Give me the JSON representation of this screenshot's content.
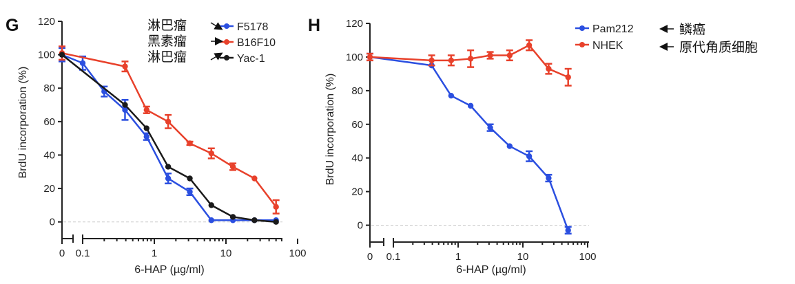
{
  "chart_data": [
    {
      "panel": "G",
      "type": "line",
      "xlabel": "6-HAP (µg/ml)",
      "ylabel": "BrdU incorporation (%)",
      "xscale": "log (broken axis with 0)",
      "ylim": [
        -10,
        120
      ],
      "yticks": [
        "0",
        "20",
        "40",
        "60",
        "80",
        "100",
        "120"
      ],
      "xticks": [
        "0",
        "0.1",
        "1",
        "10",
        "100"
      ],
      "legend_position": "top-right",
      "series": [
        {
          "name": "F5178",
          "color": "#2b4fe0",
          "annotation": "淋巴瘤",
          "x": [
            0,
            0.1,
            0.2,
            0.39,
            0.78,
            1.56,
            3.13,
            6.25,
            12.5,
            25,
            50
          ],
          "y": [
            100,
            95,
            78,
            67,
            51,
            26,
            18,
            1,
            1,
            1,
            1
          ],
          "err": [
            4,
            4,
            3,
            6,
            2,
            3,
            2,
            0,
            0,
            0,
            0
          ]
        },
        {
          "name": "B16F10",
          "color": "#e8412b",
          "annotation": "黑素瘤",
          "x": [
            0,
            0.39,
            0.78,
            1.56,
            3.13,
            6.25,
            12.5,
            25,
            50
          ],
          "y": [
            101,
            93,
            67,
            60,
            47,
            41,
            33,
            26,
            9
          ],
          "err": [
            4,
            3,
            2,
            4,
            1,
            3,
            2,
            0,
            4
          ]
        },
        {
          "name": "Yac-1",
          "color": "#1a1a1a",
          "annotation": "淋巴瘤",
          "x": [
            0,
            0.39,
            0.78,
            1.56,
            3.13,
            6.25,
            12.5,
            25,
            50
          ],
          "y": [
            100,
            70,
            56,
            33,
            26,
            10,
            3,
            1,
            0
          ],
          "err": [
            0,
            0,
            0,
            0,
            0,
            0,
            0,
            0,
            0
          ]
        }
      ]
    },
    {
      "panel": "H",
      "type": "line",
      "xlabel": "6-HAP (µg/ml)",
      "ylabel": "BrdU incorporation (%)",
      "xscale": "log (broken axis with 0)",
      "ylim": [
        -10,
        120
      ],
      "yticks": [
        "0",
        "20",
        "40",
        "60",
        "80",
        "100",
        "120"
      ],
      "xticks": [
        "0",
        "0.1",
        "1",
        "10",
        "100"
      ],
      "legend_position": "top-right",
      "series": [
        {
          "name": "Pam212",
          "color": "#2b4fe0",
          "annotation": "鳞癌",
          "x": [
            0,
            0.39,
            0.78,
            1.56,
            3.13,
            6.25,
            12.5,
            25,
            50
          ],
          "y": [
            100,
            95,
            77,
            71,
            58,
            47,
            41,
            28,
            -3
          ],
          "err": [
            2,
            0,
            0,
            0,
            2,
            0,
            3,
            2,
            2
          ]
        },
        {
          "name": "NHEK",
          "color": "#e8412b",
          "annotation": "原代角质细胞",
          "x": [
            0,
            0.39,
            0.78,
            1.56,
            3.13,
            6.25,
            12.5,
            25,
            50
          ],
          "y": [
            100,
            98,
            98,
            99,
            101,
            101,
            107,
            93,
            88
          ],
          "err": [
            2,
            3,
            3,
            5,
            2,
            3,
            3,
            3,
            5
          ]
        }
      ]
    }
  ]
}
